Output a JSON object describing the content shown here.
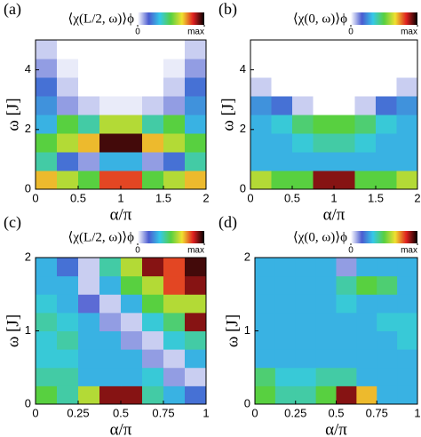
{
  "chart_data": [
    {
      "type": "heatmap",
      "panel_label": "(a)",
      "title": "⟨χ(L/2, ω)⟩ϕ",
      "xlabel": "α/π",
      "ylabel": "ω [J]",
      "xlim": [
        0,
        2
      ],
      "xticks": [
        0,
        0.5,
        1,
        1.5,
        2
      ],
      "ylim": [
        0,
        5
      ],
      "yticks": [
        0,
        2,
        4
      ],
      "zlim": [
        0,
        1
      ],
      "colorbar_ticks": [
        0,
        {
          "value": 1,
          "label": "max"
        }
      ],
      "colormap": [
        "#ffffff",
        "#4a5bd0",
        "#35c8e8",
        "#58d040",
        "#f0e030",
        "#e02020",
        "#000000"
      ],
      "z": [
        [
          0.7,
          0.6,
          0.5,
          0.8,
          0.8,
          0.5,
          0.6,
          0.7
        ],
        [
          0.4,
          0.2,
          0.1,
          0.3,
          0.3,
          0.1,
          0.2,
          0.4
        ],
        [
          0.5,
          0.6,
          0.7,
          0.95,
          0.95,
          0.7,
          0.6,
          0.5
        ],
        [
          0.3,
          0.5,
          0.4,
          0.6,
          0.6,
          0.4,
          0.5,
          0.3
        ],
        [
          0.25,
          0.1,
          0.05,
          0.02,
          0.02,
          0.05,
          0.1,
          0.25
        ],
        [
          0.2,
          0.05,
          0,
          0,
          0,
          0,
          0.05,
          0.2
        ],
        [
          0.1,
          0.02,
          0,
          0,
          0,
          0,
          0.02,
          0.1
        ],
        [
          0.05,
          0,
          0,
          0,
          0,
          0,
          0,
          0.05
        ]
      ]
    },
    {
      "type": "heatmap",
      "panel_label": "(b)",
      "title": "⟨χ(0, ω)⟩ϕ",
      "xlabel": "α/π",
      "ylabel": "ω [J]",
      "xlim": [
        0,
        2
      ],
      "xticks": [
        0,
        0.5,
        1,
        1.5,
        2
      ],
      "ylim": [
        0,
        5
      ],
      "yticks": [
        0,
        2,
        4
      ],
      "zlim": [
        0,
        1
      ],
      "colorbar_ticks": [
        0,
        {
          "value": 1,
          "label": "max"
        }
      ],
      "colormap": [
        "#ffffff",
        "#4a5bd0",
        "#35c8e8",
        "#58d040",
        "#f0e030",
        "#e02020",
        "#000000"
      ],
      "z": [
        [
          0.6,
          0.5,
          0.5,
          0.9,
          0.9,
          0.5,
          0.5,
          0.6
        ],
        [
          0.3,
          0.3,
          0.3,
          0.3,
          0.3,
          0.3,
          0.3,
          0.3
        ],
        [
          0.3,
          0.3,
          0.35,
          0.4,
          0.4,
          0.35,
          0.3,
          0.3
        ],
        [
          0.3,
          0.35,
          0.45,
          0.5,
          0.5,
          0.45,
          0.35,
          0.3
        ],
        [
          0.25,
          0.2,
          0.05,
          0,
          0,
          0.05,
          0.2,
          0.25
        ],
        [
          0.05,
          0,
          0,
          0,
          0,
          0,
          0,
          0.05
        ],
        [
          0,
          0,
          0,
          0,
          0,
          0,
          0,
          0
        ],
        [
          0,
          0,
          0,
          0,
          0,
          0,
          0,
          0
        ]
      ]
    },
    {
      "type": "heatmap",
      "panel_label": "(c)",
      "title": "⟨χ(L/2, ω)⟩ϕ",
      "xlabel": "α/π",
      "ylabel": "ω [J]",
      "xlim": [
        0,
        1
      ],
      "xticks": [
        0,
        0.25,
        0.5,
        0.75,
        1
      ],
      "ylim": [
        0,
        2
      ],
      "yticks": [
        0,
        1,
        2
      ],
      "zlim": [
        0,
        1
      ],
      "colorbar_ticks": [
        0,
        {
          "value": 1,
          "label": "max"
        }
      ],
      "colormap": [
        "#ffffff",
        "#4a5bd0",
        "#35c8e8",
        "#58d040",
        "#f0e030",
        "#e02020",
        "#000000"
      ],
      "z": [
        [
          0.5,
          0.4,
          0.6,
          0.9,
          0.9,
          0.4,
          0.3,
          0.2
        ],
        [
          0.4,
          0.4,
          0.3,
          0.3,
          0.3,
          0.35,
          0.1,
          0.05
        ],
        [
          0.35,
          0.35,
          0.3,
          0.3,
          0.3,
          0.1,
          0.05,
          0.3
        ],
        [
          0.35,
          0.4,
          0.3,
          0.3,
          0.1,
          0.05,
          0.35,
          0.4
        ],
        [
          0.4,
          0.35,
          0.3,
          0.1,
          0.05,
          0.35,
          0.45,
          0.9
        ],
        [
          0.35,
          0.3,
          0.15,
          0.05,
          0.3,
          0.5,
          0.6,
          0.6
        ],
        [
          0.3,
          0.3,
          0.05,
          0.3,
          0.5,
          0.6,
          0.8,
          0.9
        ],
        [
          0.3,
          0.2,
          0.05,
          0.4,
          0.6,
          0.9,
          0.8,
          0.95
        ]
      ]
    },
    {
      "type": "heatmap",
      "panel_label": "(d)",
      "title": "⟨χ(0, ω)⟩ϕ",
      "xlabel": "α/π",
      "ylabel": "ω [J]",
      "xlim": [
        0,
        1
      ],
      "xticks": [
        0,
        0.25,
        0.5,
        0.75,
        1
      ],
      "ylim": [
        0,
        2
      ],
      "yticks": [
        0,
        1,
        2
      ],
      "zlim": [
        0,
        1
      ],
      "colorbar_ticks": [
        0,
        {
          "value": 1,
          "label": "max"
        }
      ],
      "colormap": [
        "#ffffff",
        "#4a5bd0",
        "#35c8e8",
        "#58d040",
        "#f0e030",
        "#e02020",
        "#000000"
      ],
      "z": [
        [
          0.5,
          0.4,
          0.4,
          0.5,
          0.9,
          0.7,
          0.3,
          0.3
        ],
        [
          0.45,
          0.35,
          0.35,
          0.4,
          0.4,
          0.3,
          0.3,
          0.3
        ],
        [
          0.3,
          0.3,
          0.3,
          0.3,
          0.3,
          0.3,
          0.3,
          0.3
        ],
        [
          0.3,
          0.3,
          0.3,
          0.3,
          0.3,
          0.3,
          0.3,
          0.35
        ],
        [
          0.3,
          0.3,
          0.3,
          0.3,
          0.3,
          0.3,
          0.35,
          0.35
        ],
        [
          0.3,
          0.3,
          0.3,
          0.3,
          0.35,
          0.3,
          0.3,
          0.3
        ],
        [
          0.3,
          0.3,
          0.3,
          0.3,
          0.4,
          0.5,
          0.45,
          0.3
        ],
        [
          0.3,
          0.3,
          0.3,
          0.3,
          0.1,
          0.3,
          0.3,
          0.3
        ]
      ]
    }
  ]
}
